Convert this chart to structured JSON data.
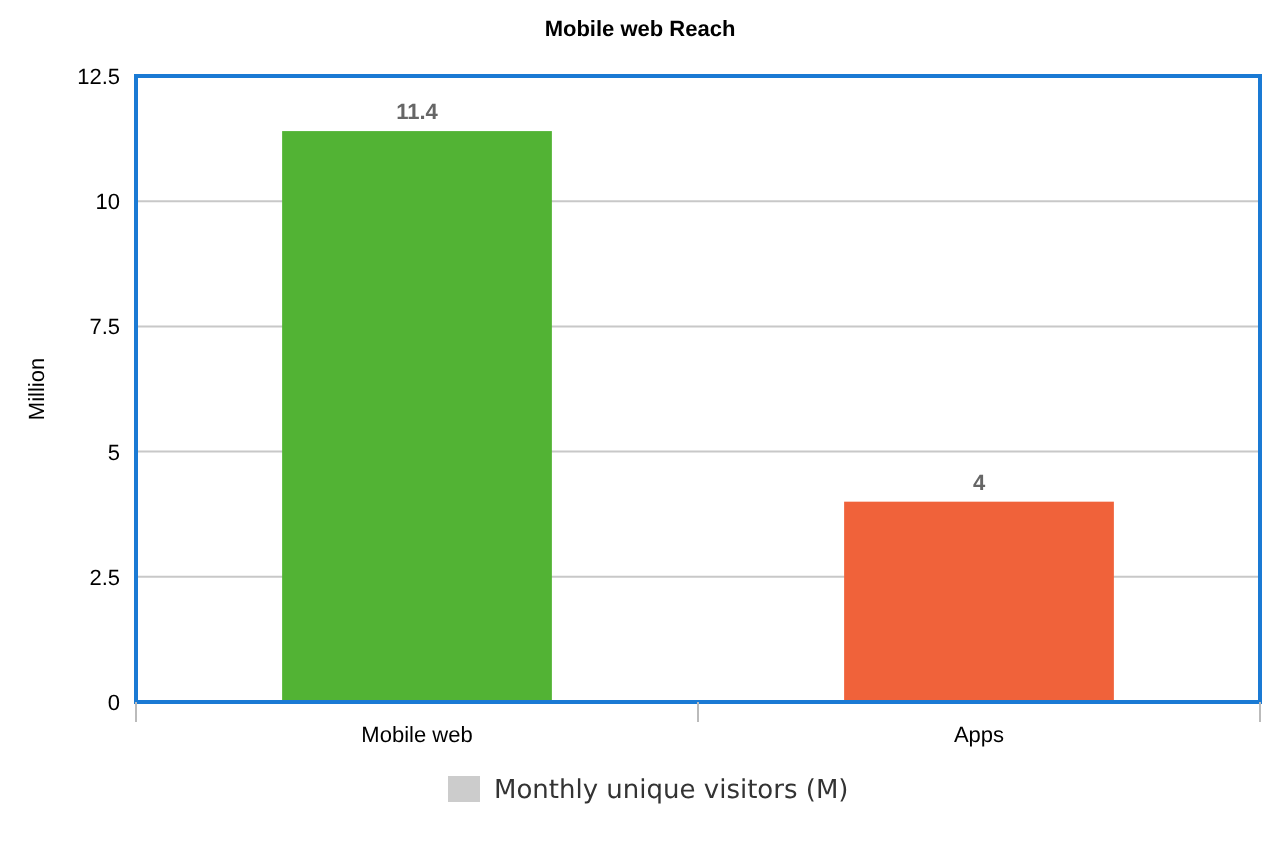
{
  "chart_data": {
    "type": "bar",
    "title": "Mobile web Reach",
    "ylabel": "Million",
    "categories": [
      "Mobile web",
      "Apps"
    ],
    "series": [
      {
        "name": "Monthly unique visitors (M)",
        "color": "#cccccc",
        "colors": [
          "#52b334",
          "#f0623a"
        ],
        "values": [
          11.4,
          4
        ]
      }
    ],
    "ylim": [
      0,
      12.5
    ],
    "yticks": [
      0,
      2.5,
      5,
      7.5,
      10,
      12.5
    ],
    "grid": "y",
    "legend": "bottom",
    "data_labels": true
  }
}
